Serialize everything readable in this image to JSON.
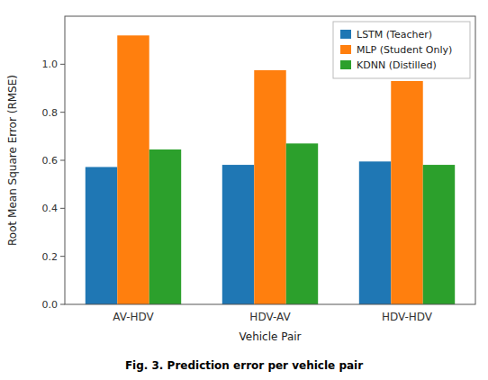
{
  "chart_data": {
    "type": "bar",
    "caption": "Fig. 3. Prediction error per vehicle pair",
    "x_label": "Vehicle Pair",
    "y_label": "Root Mean Square Error (RMSE)",
    "categories": [
      "AV-HDV",
      "HDV-AV",
      "HDV-HDV"
    ],
    "series": [
      {
        "name": "LSTM (Teacher)",
        "color": "#1f77b4",
        "values": [
          0.572,
          0.581,
          0.595
        ]
      },
      {
        "name": "MLP (Student Only)",
        "color": "#ff7f0e",
        "values": [
          1.12,
          0.975,
          0.93
        ]
      },
      {
        "name": "KDNN (Distilled)",
        "color": "#2ca02c",
        "values": [
          0.645,
          0.67,
          0.581
        ]
      }
    ],
    "ylim": [
      0.0,
      1.2
    ],
    "yticks": [
      {
        "value": 0.0,
        "label": "0.0"
      },
      0.2,
      0.4,
      0.6,
      0.8,
      {
        "value": 1.0,
        "label": "1.0"
      }
    ],
    "grid": false,
    "legend": "upper right"
  }
}
